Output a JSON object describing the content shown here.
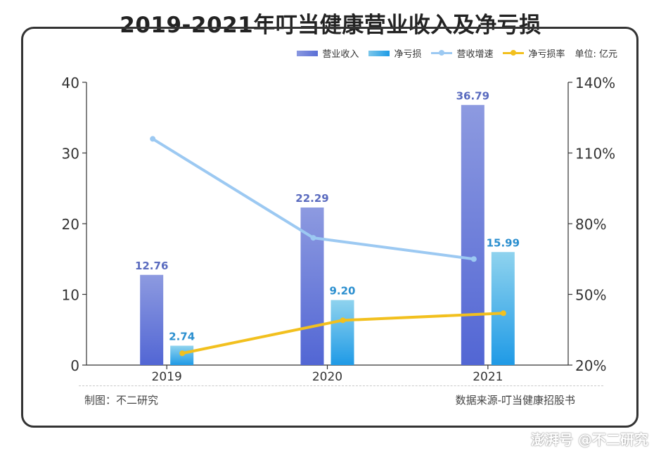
{
  "title": "2019-2021年叮当健康营业收入及净亏损",
  "legend": {
    "items": [
      {
        "label": "营业收入",
        "color": "#6a7ed9",
        "kind": "bar"
      },
      {
        "label": "净亏损",
        "color": "#2ea3e6",
        "kind": "bar"
      },
      {
        "label": "营收增速",
        "color": "#9cc9f2",
        "kind": "line"
      },
      {
        "label": "净亏损率",
        "color": "#f2c01e",
        "kind": "line"
      }
    ],
    "unit": "单位: 亿元"
  },
  "footer": {
    "left": "制图：不二研究",
    "right": "数据来源-叮当健康招股书"
  },
  "watermark": {
    "brand": "澎湃号 @不二研究"
  },
  "chart_data": {
    "type": "bar",
    "categories": [
      "2019",
      "2020",
      "2021"
    ],
    "series": [
      {
        "name": "营业收入",
        "axis": "left",
        "type": "bar",
        "values": [
          12.76,
          22.29,
          36.79
        ],
        "labels": [
          "12.76",
          "22.29",
          "36.79"
        ],
        "color": "#6a7ed9"
      },
      {
        "name": "净亏损",
        "axis": "left",
        "type": "bar",
        "values": [
          2.74,
          9.2,
          15.99
        ],
        "labels": [
          "2.74",
          "9.20",
          "15.99"
        ],
        "color": "#2ea3e6"
      },
      {
        "name": "营收增速",
        "axis": "right",
        "type": "line",
        "values": [
          116,
          74,
          65
        ],
        "color": "#9cc9f2"
      },
      {
        "name": "净亏损率",
        "axis": "right",
        "type": "line",
        "values": [
          25,
          39,
          42
        ],
        "color": "#f2c01e"
      }
    ],
    "y_left": {
      "ticks": [
        "0",
        "10",
        "20",
        "30",
        "40"
      ],
      "range": [
        0,
        40
      ]
    },
    "y_right": {
      "ticks": [
        "20%",
        "50%",
        "80%",
        "110%",
        "140%"
      ],
      "range": [
        20,
        140
      ]
    },
    "grid": false
  }
}
